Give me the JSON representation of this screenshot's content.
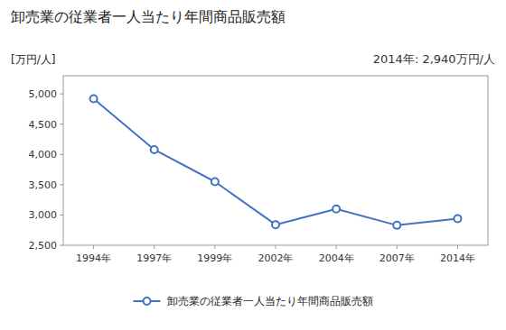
{
  "chart_data": {
    "type": "line",
    "title": "卸売業の従業者一人当たり年間商品販売額",
    "ylabel": "[万円/人]",
    "annotation": "2014年: 2,940万円/人",
    "categories": [
      "1994年",
      "1997年",
      "1999年",
      "2002年",
      "2004年",
      "2007年",
      "2014年"
    ],
    "series": [
      {
        "name": "卸売業の従業者一人当たり年間商品販売額",
        "color": "#4472C4",
        "marker": "circle",
        "values": [
          4920,
          4080,
          3550,
          2840,
          3100,
          2830,
          2940
        ]
      }
    ],
    "ylim": [
      2500,
      5300
    ],
    "yticks": [
      {
        "value": 2500,
        "label": "2,500"
      },
      {
        "value": 3000,
        "label": "3,000"
      },
      {
        "value": 3500,
        "label": "3,500"
      },
      {
        "value": 4000,
        "label": "4,000"
      },
      {
        "value": 4500,
        "label": "4,500"
      },
      {
        "value": 5000,
        "label": "5,000"
      }
    ],
    "grid": false,
    "legend": "bottom"
  }
}
